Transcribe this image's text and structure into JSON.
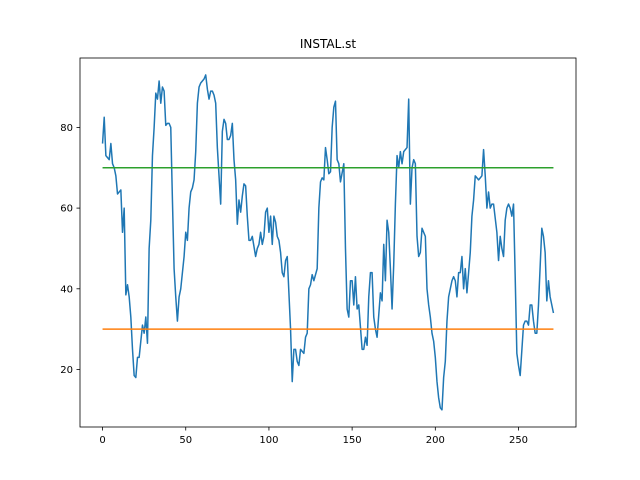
{
  "chart_data": {
    "type": "line",
    "title": "INSTAL.st",
    "xlim": [
      -13.55,
      284.55
    ],
    "ylim": [
      5.75,
      97.2
    ],
    "xticks": [
      0,
      50,
      100,
      150,
      200,
      250
    ],
    "yticks": [
      20,
      40,
      60,
      80
    ],
    "series": [
      {
        "color": "#1f77b4",
        "x": [
          0,
          1,
          2,
          3,
          4,
          5,
          6,
          7,
          8,
          9,
          10,
          11,
          12,
          13,
          14,
          15,
          16,
          17,
          18,
          19,
          20,
          21,
          22,
          23,
          24,
          25,
          26,
          27,
          28,
          29,
          30,
          31,
          32,
          33,
          34,
          35,
          36,
          37,
          38,
          39,
          40,
          41,
          42,
          43,
          44,
          45,
          46,
          47,
          48,
          49,
          50,
          51,
          52,
          53,
          54,
          55,
          56,
          57,
          58,
          59,
          60,
          61,
          62,
          63,
          64,
          65,
          66,
          67,
          68,
          69,
          71,
          72,
          73,
          74,
          75,
          76,
          77,
          78,
          79,
          80,
          81,
          82,
          83,
          84,
          85,
          86,
          87,
          88,
          89,
          90,
          92,
          93,
          94,
          95,
          96,
          97,
          98,
          99,
          100,
          101,
          102,
          103,
          104,
          105,
          106,
          107,
          108,
          109,
          110,
          111,
          113,
          114,
          115,
          116,
          117,
          118,
          119,
          120,
          121,
          122,
          123,
          124,
          125,
          126,
          127,
          129,
          130,
          131,
          132,
          133,
          134,
          135,
          136,
          137,
          138,
          139,
          140,
          141,
          142,
          143,
          145,
          146,
          147,
          148,
          149,
          150,
          151,
          152,
          153,
          154,
          156,
          157,
          158,
          159,
          160,
          161,
          162,
          163,
          164,
          165,
          167,
          168,
          169,
          170,
          171,
          172,
          173,
          174,
          175,
          176,
          177,
          178,
          179,
          180,
          181,
          183,
          184,
          185,
          186,
          187,
          188,
          189,
          190,
          191,
          192,
          194,
          195,
          196,
          197,
          198,
          199,
          200,
          201,
          202,
          203,
          204,
          205,
          206,
          207,
          208,
          210,
          211,
          212,
          213,
          214,
          215,
          216,
          217,
          218,
          219,
          220,
          221,
          222,
          223,
          224,
          226,
          227,
          228,
          229,
          230,
          231,
          232,
          233,
          234,
          235,
          237,
          238,
          239,
          240,
          241,
          242,
          243,
          244,
          245,
          246,
          247,
          248,
          249,
          250,
          251,
          253,
          254,
          255,
          256,
          257,
          258,
          259,
          260,
          261,
          262,
          264,
          265,
          266,
          267,
          268,
          269,
          271
        ],
        "values": [
          76,
          82.5,
          73,
          72.5,
          72,
          76,
          71,
          70,
          68,
          63.5,
          64,
          64.5,
          54,
          60,
          38.5,
          41,
          38,
          33,
          25,
          18.5,
          18,
          23,
          23,
          27,
          31,
          29,
          33,
          26.5,
          50,
          57,
          73,
          80,
          88.5,
          87,
          91.5,
          86,
          90,
          89,
          80.5,
          81,
          81,
          80,
          62,
          45,
          38,
          32,
          38,
          40,
          44,
          48,
          54,
          52,
          60,
          64,
          65,
          67,
          74,
          86,
          90,
          91,
          91.5,
          92,
          93,
          89.5,
          87,
          89,
          89,
          88,
          86,
          75,
          61,
          79,
          82,
          81,
          77,
          77,
          78,
          81,
          72,
          67,
          56,
          62,
          59,
          63,
          66,
          65.5,
          58,
          52,
          52,
          53,
          48,
          50,
          51,
          54,
          51,
          53,
          59,
          60,
          54,
          58,
          51,
          58,
          56.5,
          53,
          52,
          49,
          44,
          43,
          47,
          48,
          30,
          17,
          25,
          25,
          22,
          21,
          25,
          24.5,
          24,
          28,
          29,
          40,
          41,
          43.5,
          42,
          45,
          60,
          66.5,
          67.5,
          67,
          75,
          72,
          68.5,
          69,
          80,
          85,
          86.5,
          72,
          71,
          66.5,
          71,
          50,
          35,
          33,
          42,
          42,
          36,
          43,
          35,
          36,
          25,
          25,
          28,
          26,
          38,
          44,
          44,
          33,
          30,
          28,
          39,
          37,
          51,
          42,
          57,
          54,
          45,
          35,
          46,
          61,
          73,
          70,
          74,
          71,
          74,
          75,
          87,
          61,
          70,
          72,
          71,
          53,
          48,
          49,
          55,
          53,
          40,
          36,
          33,
          29,
          27,
          23,
          17,
          13,
          10.5,
          10,
          18,
          22,
          32,
          38,
          42,
          43,
          42,
          38,
          44,
          44,
          48,
          40,
          45,
          39,
          44,
          49,
          58,
          62,
          68,
          67,
          67.5,
          68,
          74.5,
          68,
          60,
          64,
          60,
          61,
          61,
          54,
          47,
          53,
          50,
          48,
          57,
          60,
          61,
          60,
          58,
          61,
          43,
          24,
          21,
          18.5,
          31,
          32,
          32,
          31,
          36,
          36,
          32,
          29,
          29,
          36,
          55,
          53,
          49,
          37,
          42,
          38,
          34
        ]
      },
      {
        "color": "#ff7f0e",
        "x": [
          0,
          271
        ],
        "values": [
          30,
          30
        ]
      },
      {
        "color": "#2ca02c",
        "x": [
          0,
          271
        ],
        "values": [
          70,
          70
        ]
      }
    ]
  }
}
